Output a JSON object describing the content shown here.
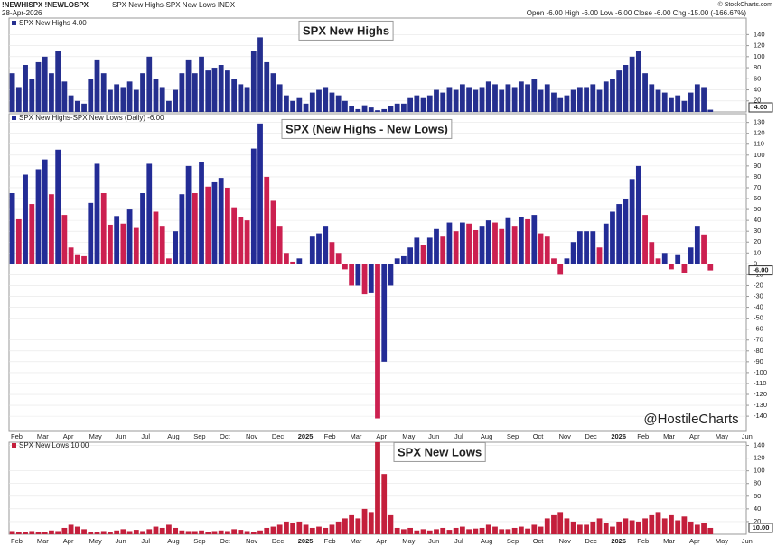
{
  "header": {
    "symbol": "!NEWHISPX !NEWLOSPX",
    "description": "SPX New Highs-SPX New Lows INDX",
    "date": "28-Apr-2026",
    "copyright": "© StockCharts.com",
    "quote": "Open -6.00  High -6.00  Low -6.00  Close -6.00  Chg -15.00 (-166.67%)"
  },
  "watermark": "@HostileCharts",
  "chart_data": [
    {
      "type": "bar",
      "title": "SPX New Highs",
      "legend": "SPX New Highs 4.00",
      "value_tag": "4.00",
      "color": "#252f8f",
      "title_color": "#2233aa",
      "ylim": [
        0,
        170
      ],
      "yticks": [
        20,
        40,
        60,
        80,
        100,
        120,
        140
      ],
      "grid": true,
      "values": [
        70,
        45,
        85,
        60,
        90,
        100,
        70,
        110,
        55,
        30,
        20,
        15,
        60,
        95,
        70,
        40,
        50,
        45,
        55,
        40,
        70,
        100,
        60,
        45,
        20,
        40,
        70,
        95,
        70,
        100,
        75,
        80,
        85,
        75,
        60,
        50,
        45,
        110,
        135,
        90,
        70,
        50,
        30,
        20,
        25,
        15,
        35,
        40,
        45,
        35,
        30,
        20,
        10,
        5,
        12,
        8,
        3,
        5,
        10,
        15,
        15,
        25,
        30,
        25,
        30,
        40,
        35,
        45,
        40,
        50,
        45,
        40,
        45,
        55,
        50,
        40,
        50,
        45,
        55,
        50,
        60,
        40,
        50,
        35,
        25,
        30,
        40,
        45,
        45,
        50,
        40,
        55,
        60,
        75,
        85,
        100,
        110,
        70,
        50,
        40,
        35,
        25,
        30,
        20,
        35,
        50,
        45,
        4,
        null,
        null,
        null,
        null,
        null
      ]
    },
    {
      "type": "bar",
      "title": "SPX (New Highs - New Lows)",
      "legend": "SPX New Highs-SPX New Lows (Daily) -6.00",
      "value_tag": "-6.00",
      "up_color": "#232c96",
      "down_color": "#cc2050",
      "title_color": "#000000",
      "ylim": [
        -154,
        138
      ],
      "yticks": [
        130,
        120,
        110,
        100,
        90,
        80,
        70,
        60,
        50,
        40,
        30,
        20,
        10,
        0,
        -10,
        -20,
        -30,
        -40,
        -50,
        -60,
        -70,
        -80,
        -90,
        -100,
        -110,
        -120,
        -130,
        -140
      ],
      "grid": true,
      "categories": [
        "Feb",
        null,
        null,
        null,
        "Mar",
        null,
        null,
        null,
        "Apr",
        null,
        null,
        null,
        "May",
        null,
        null,
        null,
        "Jun",
        null,
        null,
        null,
        "Jul",
        null,
        null,
        null,
        "Aug",
        null,
        null,
        null,
        "Sep",
        null,
        null,
        null,
        "Oct",
        null,
        null,
        null,
        "Nov",
        null,
        null,
        null,
        "Dec",
        null,
        null,
        null,
        "2025",
        null,
        null,
        null,
        "Feb",
        null,
        null,
        null,
        "Mar",
        null,
        null,
        null,
        "Apr",
        null,
        null,
        null,
        "May",
        null,
        null,
        null,
        "Jun",
        null,
        null,
        null,
        "Jul",
        null,
        null,
        null,
        "Aug",
        null,
        null,
        null,
        "Sep",
        null,
        null,
        null,
        "Oct",
        null,
        null,
        null,
        "Nov",
        null,
        null,
        null,
        "Dec",
        null,
        null,
        null,
        "2026",
        null,
        null,
        null,
        "Feb",
        null,
        null,
        null,
        "Mar",
        null,
        null,
        null,
        "Apr",
        null,
        null,
        null,
        "May",
        null,
        null,
        null,
        "Jun"
      ],
      "values": [
        65,
        41,
        82,
        55,
        87,
        96,
        64,
        105,
        45,
        15,
        8,
        7,
        56,
        92,
        65,
        36,
        44,
        37,
        50,
        33,
        65,
        92,
        48,
        35,
        5,
        30,
        64,
        90,
        65,
        94,
        71,
        75,
        79,
        70,
        52,
        43,
        40,
        106,
        129,
        80,
        58,
        35,
        10,
        2,
        5,
        0,
        25,
        28,
        35,
        20,
        10,
        -5,
        -20,
        -20,
        -28,
        -27,
        -142,
        -90,
        -20,
        5,
        7,
        15,
        24,
        17,
        24,
        32,
        25,
        38,
        30,
        38,
        37,
        31,
        35,
        40,
        38,
        32,
        42,
        35,
        43,
        41,
        45,
        28,
        25,
        5,
        -10,
        5,
        20,
        30,
        30,
        30,
        15,
        37,
        48,
        55,
        60,
        78,
        90,
        45,
        20,
        5,
        10,
        -5,
        8,
        -8,
        15,
        35,
        27,
        -6,
        null,
        null,
        null,
        null,
        null
      ]
    },
    {
      "type": "bar",
      "title": "SPX New Lows",
      "legend": "SPX New Lows 10.00",
      "value_tag": "10.00",
      "color": "#c41f3c",
      "title_color": "#dd1111",
      "ylim": [
        0,
        145
      ],
      "yticks": [
        20,
        40,
        60,
        80,
        100,
        120,
        140
      ],
      "grid": true,
      "categories": [
        "Feb",
        null,
        null,
        null,
        "Mar",
        null,
        null,
        null,
        "Apr",
        null,
        null,
        null,
        "May",
        null,
        null,
        null,
        "Jun",
        null,
        null,
        null,
        "Jul",
        null,
        null,
        null,
        "Aug",
        null,
        null,
        null,
        "Sep",
        null,
        null,
        null,
        "Oct",
        null,
        null,
        null,
        "Nov",
        null,
        null,
        null,
        "Dec",
        null,
        null,
        null,
        "2025",
        null,
        null,
        null,
        "Feb",
        null,
        null,
        null,
        "Mar",
        null,
        null,
        null,
        "Apr",
        null,
        null,
        null,
        "May",
        null,
        null,
        null,
        "Jun",
        null,
        null,
        null,
        "Jul",
        null,
        null,
        null,
        "Aug",
        null,
        null,
        null,
        "Sep",
        null,
        null,
        null,
        "Oct",
        null,
        null,
        null,
        "Nov",
        null,
        null,
        null,
        "Dec",
        null,
        null,
        null,
        "2026",
        null,
        null,
        null,
        "Feb",
        null,
        null,
        null,
        "Mar",
        null,
        null,
        null,
        "Apr",
        null,
        null,
        null,
        "May",
        null,
        null,
        null,
        "Jun"
      ],
      "values": [
        5,
        4,
        3,
        5,
        3,
        4,
        6,
        5,
        10,
        15,
        12,
        8,
        4,
        3,
        5,
        4,
        6,
        8,
        5,
        7,
        5,
        8,
        12,
        10,
        15,
        10,
        6,
        5,
        5,
        6,
        4,
        5,
        6,
        5,
        8,
        7,
        5,
        4,
        6,
        10,
        12,
        15,
        20,
        18,
        20,
        15,
        10,
        12,
        10,
        15,
        20,
        25,
        30,
        25,
        40,
        35,
        145,
        95,
        30,
        10,
        8,
        10,
        6,
        8,
        6,
        8,
        10,
        7,
        10,
        12,
        8,
        9,
        10,
        15,
        12,
        8,
        8,
        10,
        12,
        9,
        15,
        12,
        25,
        30,
        35,
        25,
        20,
        15,
        15,
        20,
        25,
        18,
        12,
        20,
        25,
        22,
        20,
        25,
        30,
        35,
        25,
        30,
        22,
        28,
        20,
        15,
        18,
        10,
        null,
        null,
        null,
        null,
        null
      ]
    }
  ]
}
